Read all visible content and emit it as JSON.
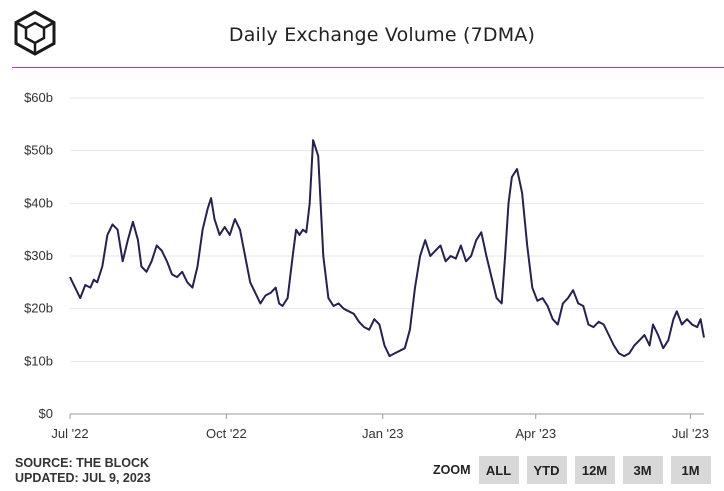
{
  "header": {
    "title": "Daily Exchange Volume (7DMA)",
    "logo_icon": "the-block-cube-icon"
  },
  "colors": {
    "line": "#26214f",
    "rule": "#b23ad0",
    "grid": "#e6e6e6",
    "button_bg": "#d8d8d8"
  },
  "footer": {
    "source": "SOURCE: THE BLOCK",
    "updated": "UPDATED: JUL 9, 2023"
  },
  "zoom": {
    "label": "ZOOM",
    "buttons": [
      "ALL",
      "YTD",
      "12M",
      "3M",
      "1M"
    ]
  },
  "chart_data": {
    "type": "line",
    "title": "Daily Exchange Volume (7DMA)",
    "xlabel": "",
    "ylabel": "",
    "x_ticks": [
      "Jul '22",
      "Oct '22",
      "Jan '23",
      "Apr '23",
      "Jul '23"
    ],
    "y_ticks": [
      "$0",
      "$10b",
      "$20b",
      "$30b",
      "$40b",
      "$50b",
      "$60b"
    ],
    "ylim": [
      0,
      60
    ],
    "xlim": [
      "2022-07-01",
      "2023-07-09"
    ],
    "grid": true,
    "series": [
      {
        "name": "Daily Exchange Volume",
        "points": [
          [
            "2022-07-01",
            26
          ],
          [
            "2022-07-04",
            24
          ],
          [
            "2022-07-07",
            22
          ],
          [
            "2022-07-10",
            24.5
          ],
          [
            "2022-07-13",
            24
          ],
          [
            "2022-07-15",
            25.5
          ],
          [
            "2022-07-17",
            25
          ],
          [
            "2022-07-20",
            28
          ],
          [
            "2022-07-23",
            34
          ],
          [
            "2022-07-26",
            36
          ],
          [
            "2022-07-29",
            35
          ],
          [
            "2022-08-01",
            29
          ],
          [
            "2022-08-04",
            33
          ],
          [
            "2022-08-07",
            36.5
          ],
          [
            "2022-08-10",
            33
          ],
          [
            "2022-08-12",
            28
          ],
          [
            "2022-08-15",
            27
          ],
          [
            "2022-08-18",
            29
          ],
          [
            "2022-08-21",
            32
          ],
          [
            "2022-08-24",
            31
          ],
          [
            "2022-08-27",
            29
          ],
          [
            "2022-08-30",
            26.5
          ],
          [
            "2022-09-02",
            26
          ],
          [
            "2022-09-05",
            27
          ],
          [
            "2022-09-08",
            25
          ],
          [
            "2022-09-11",
            24
          ],
          [
            "2022-09-14",
            28
          ],
          [
            "2022-09-17",
            35
          ],
          [
            "2022-09-20",
            39
          ],
          [
            "2022-09-22",
            41
          ],
          [
            "2022-09-24",
            37
          ],
          [
            "2022-09-27",
            34
          ],
          [
            "2022-09-30",
            35.5
          ],
          [
            "2022-10-03",
            34
          ],
          [
            "2022-10-06",
            37
          ],
          [
            "2022-10-09",
            35
          ],
          [
            "2022-10-12",
            30
          ],
          [
            "2022-10-15",
            25
          ],
          [
            "2022-10-18",
            23
          ],
          [
            "2022-10-21",
            21
          ],
          [
            "2022-10-24",
            22.5
          ],
          [
            "2022-10-27",
            23
          ],
          [
            "2022-10-30",
            24
          ],
          [
            "2022-11-01",
            21
          ],
          [
            "2022-11-03",
            20.5
          ],
          [
            "2022-11-06",
            22
          ],
          [
            "2022-11-09",
            30
          ],
          [
            "2022-11-11",
            35
          ],
          [
            "2022-11-13",
            34
          ],
          [
            "2022-11-15",
            35
          ],
          [
            "2022-11-17",
            34.5
          ],
          [
            "2022-11-19",
            40
          ],
          [
            "2022-11-21",
            52
          ],
          [
            "2022-11-24",
            49
          ],
          [
            "2022-11-27",
            30
          ],
          [
            "2022-11-30",
            22
          ],
          [
            "2022-12-03",
            20.5
          ],
          [
            "2022-12-06",
            21
          ],
          [
            "2022-12-09",
            20
          ],
          [
            "2022-12-12",
            19.5
          ],
          [
            "2022-12-15",
            19
          ],
          [
            "2022-12-18",
            17.5
          ],
          [
            "2022-12-21",
            16.5
          ],
          [
            "2022-12-24",
            16
          ],
          [
            "2022-12-27",
            18
          ],
          [
            "2022-12-30",
            17
          ],
          [
            "2023-01-02",
            13
          ],
          [
            "2023-01-05",
            11
          ],
          [
            "2023-01-08",
            11.5
          ],
          [
            "2023-01-11",
            12
          ],
          [
            "2023-01-14",
            12.5
          ],
          [
            "2023-01-17",
            16
          ],
          [
            "2023-01-20",
            24
          ],
          [
            "2023-01-23",
            30
          ],
          [
            "2023-01-26",
            33
          ],
          [
            "2023-01-29",
            30
          ],
          [
            "2023-02-01",
            31
          ],
          [
            "2023-02-04",
            32
          ],
          [
            "2023-02-07",
            29
          ],
          [
            "2023-02-10",
            30
          ],
          [
            "2023-02-13",
            29.5
          ],
          [
            "2023-02-16",
            32
          ],
          [
            "2023-02-19",
            29
          ],
          [
            "2023-02-22",
            30
          ],
          [
            "2023-02-25",
            33
          ],
          [
            "2023-02-28",
            34.5
          ],
          [
            "2023-03-03",
            30
          ],
          [
            "2023-03-06",
            26
          ],
          [
            "2023-03-09",
            22
          ],
          [
            "2023-03-12",
            21
          ],
          [
            "2023-03-14",
            30
          ],
          [
            "2023-03-16",
            40
          ],
          [
            "2023-03-18",
            45
          ],
          [
            "2023-03-21",
            46.5
          ],
          [
            "2023-03-24",
            42
          ],
          [
            "2023-03-27",
            32
          ],
          [
            "2023-03-30",
            24
          ],
          [
            "2023-04-02",
            21.5
          ],
          [
            "2023-04-05",
            22
          ],
          [
            "2023-04-08",
            20.5
          ],
          [
            "2023-04-11",
            18
          ],
          [
            "2023-04-14",
            17
          ],
          [
            "2023-04-17",
            21
          ],
          [
            "2023-04-20",
            22
          ],
          [
            "2023-04-23",
            23.5
          ],
          [
            "2023-04-26",
            21
          ],
          [
            "2023-04-29",
            20.5
          ],
          [
            "2023-05-02",
            17
          ],
          [
            "2023-05-05",
            16.5
          ],
          [
            "2023-05-08",
            17.5
          ],
          [
            "2023-05-11",
            17
          ],
          [
            "2023-05-14",
            15
          ],
          [
            "2023-05-17",
            13
          ],
          [
            "2023-05-20",
            11.5
          ],
          [
            "2023-05-23",
            11
          ],
          [
            "2023-05-26",
            11.5
          ],
          [
            "2023-05-29",
            13
          ],
          [
            "2023-06-01",
            14
          ],
          [
            "2023-06-04",
            15
          ],
          [
            "2023-06-07",
            13
          ],
          [
            "2023-06-09",
            17
          ],
          [
            "2023-06-12",
            15
          ],
          [
            "2023-06-15",
            12.5
          ],
          [
            "2023-06-18",
            14
          ],
          [
            "2023-06-21",
            18
          ],
          [
            "2023-06-23",
            19.5
          ],
          [
            "2023-06-26",
            17
          ],
          [
            "2023-06-29",
            18
          ],
          [
            "2023-07-02",
            17
          ],
          [
            "2023-07-05",
            16.5
          ],
          [
            "2023-07-07",
            18
          ],
          [
            "2023-07-09",
            14.5
          ]
        ]
      }
    ]
  }
}
